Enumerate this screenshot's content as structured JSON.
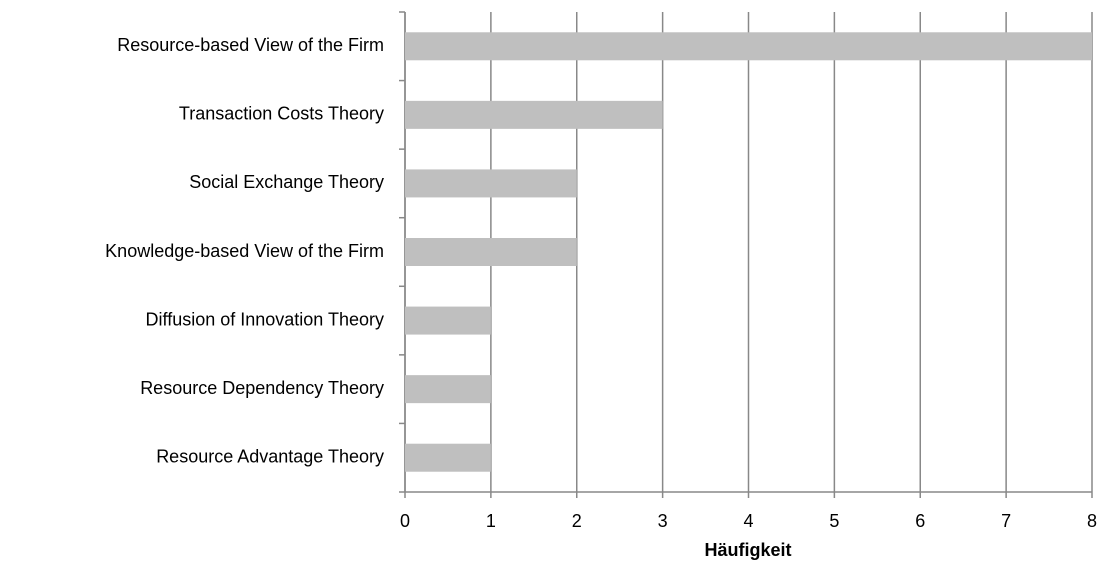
{
  "chart_data": {
    "type": "barh",
    "categories": [
      "Resource-based View of the Firm",
      "Transaction Costs Theory",
      "Social Exchange Theory",
      "Knowledge-based View of the Firm",
      "Diffusion of Innovation Theory",
      "Resource Dependency Theory",
      "Resource Advantage Theory"
    ],
    "values": [
      8,
      3,
      2,
      2,
      1,
      1,
      1
    ],
    "color": "#bfbfbf",
    "x_label": "Häufigkeit",
    "xlim": [
      0,
      8
    ],
    "xticks": [
      0,
      1,
      2,
      3,
      4,
      5,
      6,
      7,
      8
    ],
    "grid": true
  }
}
